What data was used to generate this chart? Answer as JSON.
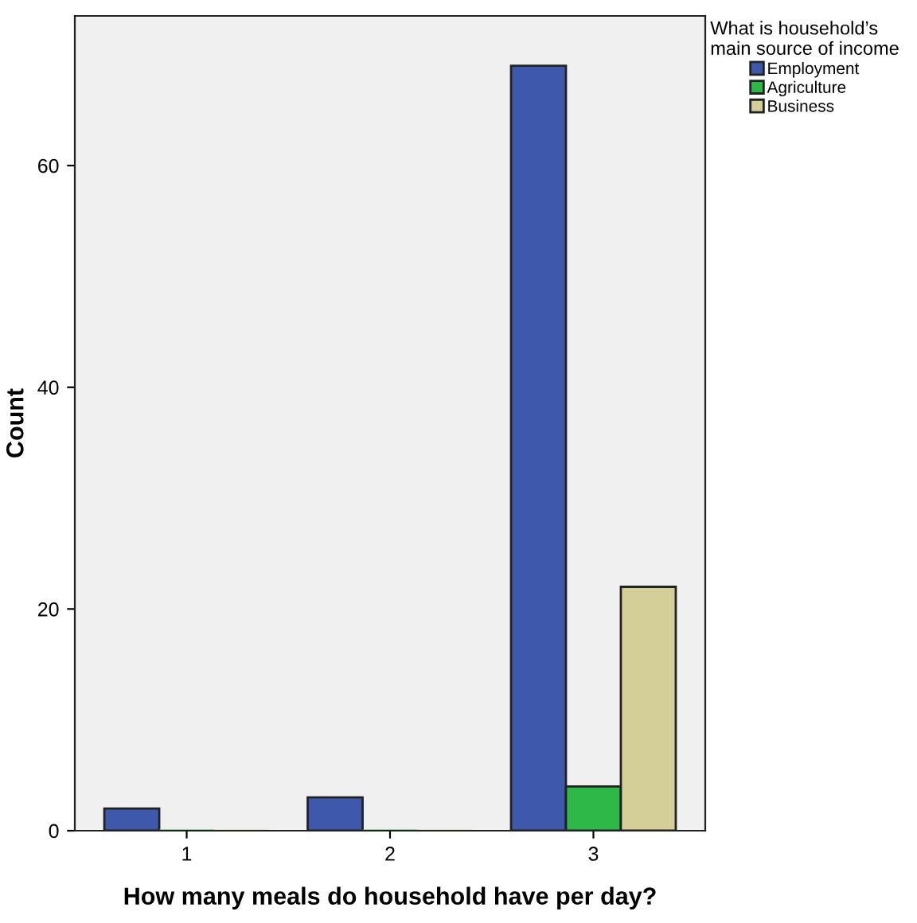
{
  "chart_data": {
    "type": "bar",
    "categories": [
      "1",
      "2",
      "3"
    ],
    "xlabel": "How many meals do household have per day?",
    "ylabel": "Count",
    "legend_title": "What is household’s\nmain source of income",
    "series": [
      {
        "name": "Employment",
        "color": "#3e58ac",
        "values": [
          2,
          3,
          69
        ]
      },
      {
        "name": "Agriculture",
        "color": "#2eb848",
        "values": [
          0,
          0,
          4
        ]
      },
      {
        "name": "Business",
        "color": "#d4cf99",
        "values": [
          0,
          0,
          22
        ]
      }
    ],
    "ylim": [
      0,
      73.5
    ],
    "yticks": [
      0,
      20,
      40,
      60
    ],
    "grid": false,
    "legend": "top right"
  }
}
